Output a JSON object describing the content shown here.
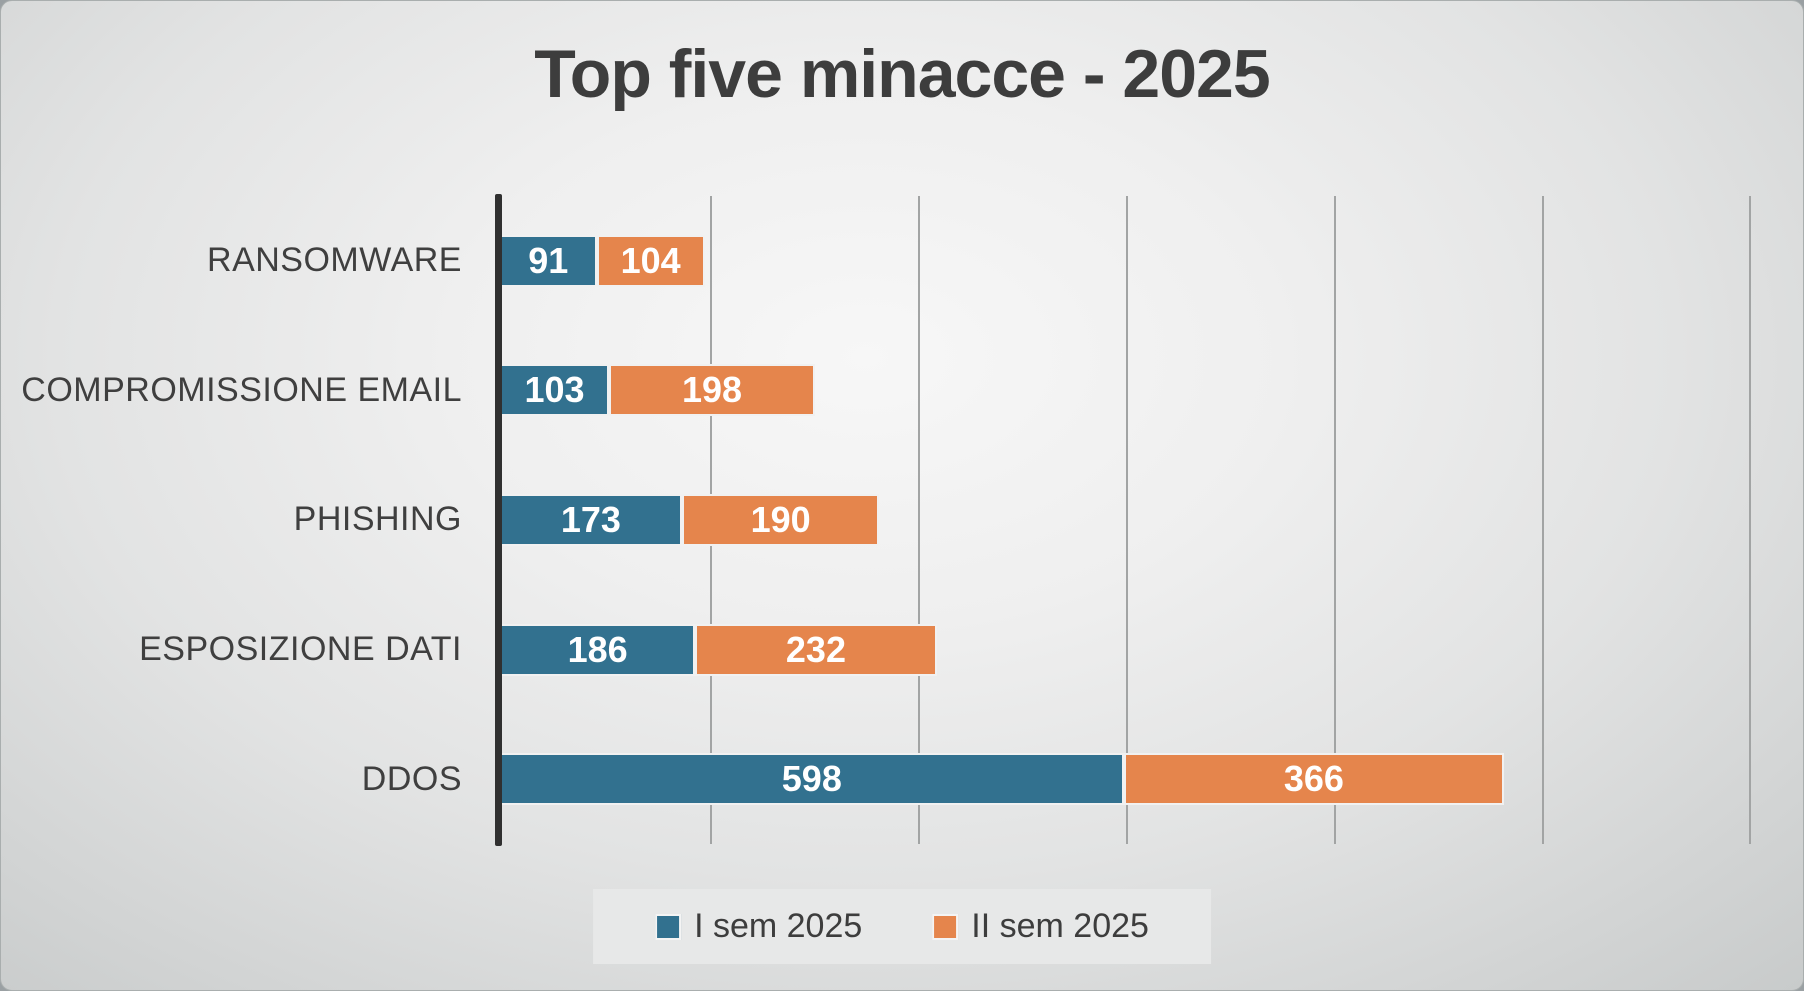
{
  "slide": {
    "title": "Top five minacce - 2025"
  },
  "chart_data": {
    "type": "bar",
    "orientation": "horizontal-stacked",
    "title": "Top five minacce - 2025",
    "xlabel": "",
    "ylabel": "",
    "categories": [
      "RANSOMWARE",
      "COMPROMISSIONE EMAIL",
      "PHISHING",
      "ESPOSIZIONE DATI",
      "DDOS"
    ],
    "series": [
      {
        "name": "I sem 2025",
        "color": "#32718F",
        "values": [
          91,
          103,
          173,
          186,
          598
        ]
      },
      {
        "name": "II sem 2025",
        "color": "#E5854C",
        "values": [
          104,
          198,
          190,
          232,
          366
        ]
      }
    ],
    "stacked_totals": [
      195,
      301,
      363,
      418,
      964
    ],
    "xlim": [
      0,
      1238
    ],
    "gridlines": [
      200,
      400,
      600,
      800,
      1000,
      1200
    ],
    "grid": true,
    "data_labels": true,
    "legend_position": "bottom"
  },
  "colors": {
    "series_1": "#32718F",
    "series_2": "#E5854C",
    "title_text": "#3d3d3d",
    "category_text": "#3f3f3f",
    "value_label_text": "#ffffff",
    "axis_line": "#303030",
    "gridline": "#a2a4a4",
    "legend_panel": "#e7e8e8",
    "background_center": "#f7f7f7",
    "background_edge": "#c6c9c9"
  }
}
